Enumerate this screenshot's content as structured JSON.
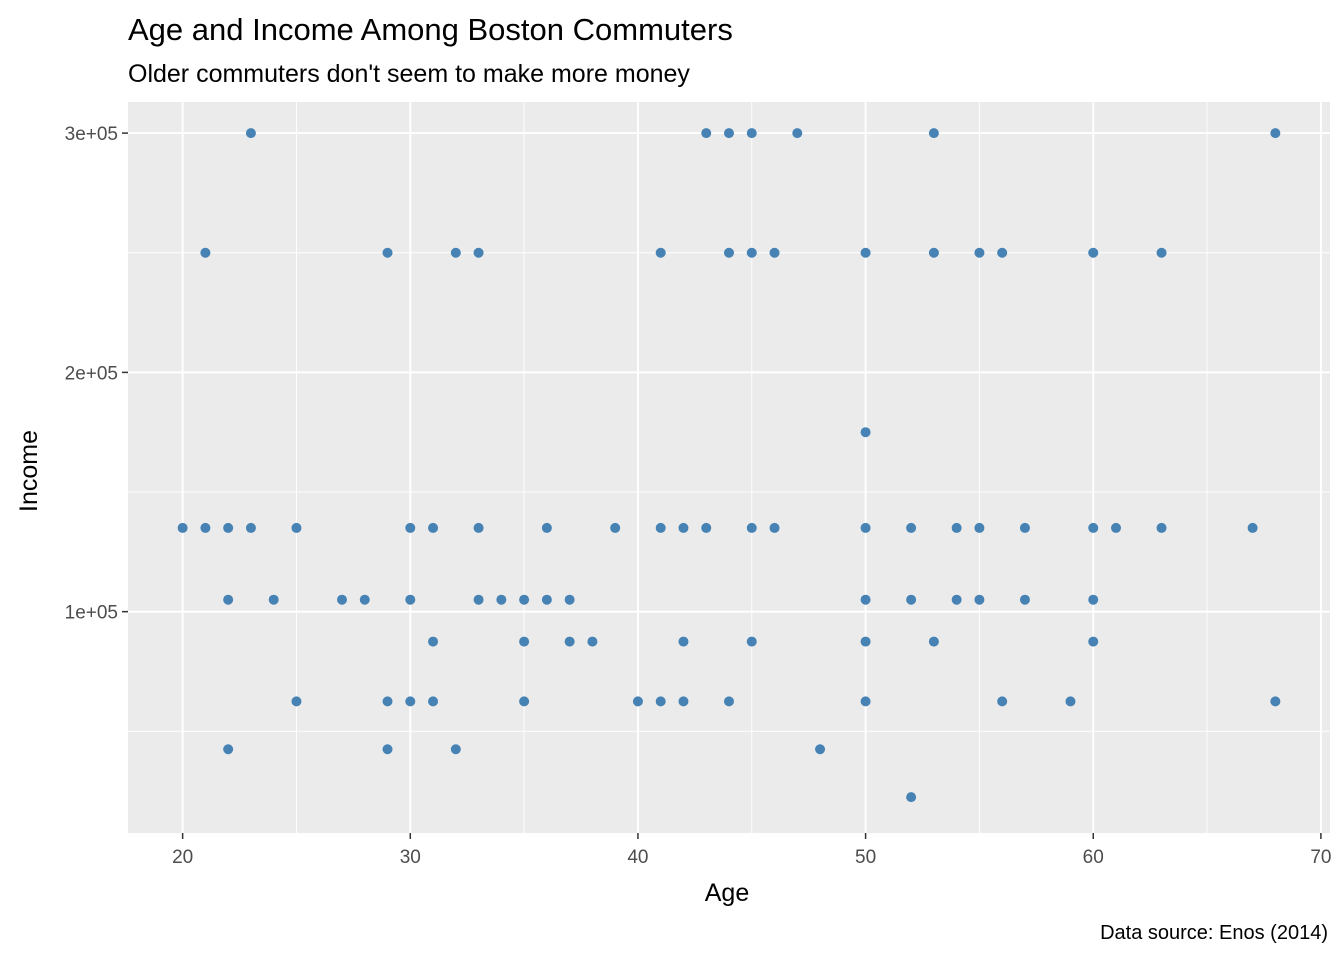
{
  "chart_data": {
    "type": "scatter",
    "title": "Age and Income Among Boston Commuters",
    "subtitle": "Older commuters don't seem to make more money",
    "caption": "Data source: Enos (2014)",
    "xlabel": "Age",
    "ylabel": "Income",
    "xlim": [
      17.6,
      70.4
    ],
    "ylim": [
      7500,
      313000
    ],
    "x_ticks": [
      20,
      30,
      40,
      50,
      60,
      70
    ],
    "x_tick_labels": [
      "20",
      "30",
      "40",
      "50",
      "60",
      "70"
    ],
    "y_ticks": [
      100000,
      200000,
      300000
    ],
    "y_tick_labels": [
      "1e+05",
      "2e+05",
      "3e+05"
    ],
    "grid": true,
    "point_color": "#4682b4",
    "panel_color": "#ebebeb",
    "points": [
      [
        23,
        300000
      ],
      [
        43,
        300000
      ],
      [
        44,
        300000
      ],
      [
        45,
        300000
      ],
      [
        47,
        300000
      ],
      [
        53,
        300000
      ],
      [
        68,
        300000
      ],
      [
        21,
        250000
      ],
      [
        29,
        250000
      ],
      [
        32,
        250000
      ],
      [
        33,
        250000
      ],
      [
        41,
        250000
      ],
      [
        44,
        250000
      ],
      [
        45,
        250000
      ],
      [
        46,
        250000
      ],
      [
        50,
        250000
      ],
      [
        53,
        250000
      ],
      [
        55,
        250000
      ],
      [
        56,
        250000
      ],
      [
        60,
        250000
      ],
      [
        63,
        250000
      ],
      [
        50,
        175000
      ],
      [
        20,
        135000
      ],
      [
        21,
        135000
      ],
      [
        22,
        135000
      ],
      [
        23,
        135000
      ],
      [
        25,
        135000
      ],
      [
        30,
        135000
      ],
      [
        31,
        135000
      ],
      [
        33,
        135000
      ],
      [
        36,
        135000
      ],
      [
        39,
        135000
      ],
      [
        41,
        135000
      ],
      [
        42,
        135000
      ],
      [
        43,
        135000
      ],
      [
        45,
        135000
      ],
      [
        46,
        135000
      ],
      [
        50,
        135000
      ],
      [
        52,
        135000
      ],
      [
        54,
        135000
      ],
      [
        55,
        135000
      ],
      [
        57,
        135000
      ],
      [
        60,
        135000
      ],
      [
        61,
        135000
      ],
      [
        63,
        135000
      ],
      [
        67,
        135000
      ],
      [
        22,
        105000
      ],
      [
        24,
        105000
      ],
      [
        27,
        105000
      ],
      [
        28,
        105000
      ],
      [
        30,
        105000
      ],
      [
        33,
        105000
      ],
      [
        34,
        105000
      ],
      [
        35,
        105000
      ],
      [
        36,
        105000
      ],
      [
        37,
        105000
      ],
      [
        50,
        105000
      ],
      [
        52,
        105000
      ],
      [
        54,
        105000
      ],
      [
        55,
        105000
      ],
      [
        57,
        105000
      ],
      [
        60,
        105000
      ],
      [
        31,
        87500
      ],
      [
        35,
        87500
      ],
      [
        37,
        87500
      ],
      [
        38,
        87500
      ],
      [
        42,
        87500
      ],
      [
        45,
        87500
      ],
      [
        50,
        87500
      ],
      [
        53,
        87500
      ],
      [
        60,
        87500
      ],
      [
        25,
        62500
      ],
      [
        29,
        62500
      ],
      [
        30,
        62500
      ],
      [
        31,
        62500
      ],
      [
        35,
        62500
      ],
      [
        40,
        62500
      ],
      [
        41,
        62500
      ],
      [
        42,
        62500
      ],
      [
        44,
        62500
      ],
      [
        50,
        62500
      ],
      [
        56,
        62500
      ],
      [
        59,
        62500
      ],
      [
        68,
        62500
      ],
      [
        22,
        42500
      ],
      [
        29,
        42500
      ],
      [
        32,
        42500
      ],
      [
        48,
        42500
      ],
      [
        52,
        22500
      ]
    ]
  }
}
